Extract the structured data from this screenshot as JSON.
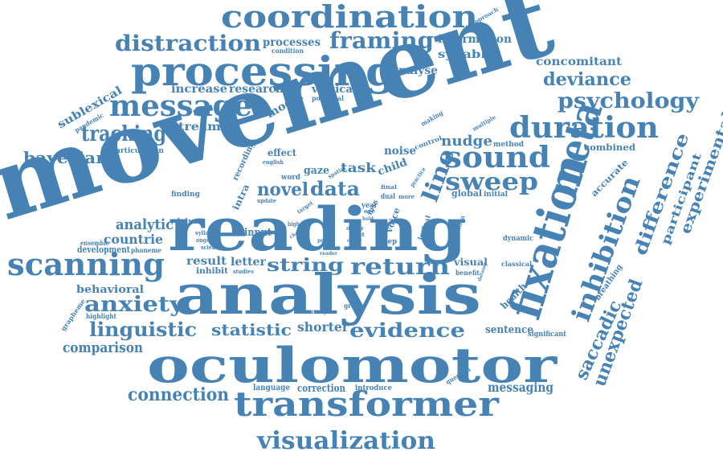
{
  "color": "#4682b4",
  "background": "#ffffff",
  "words": {
    "coordination": "coordination",
    "distraction": "distraction",
    "processes": "processes",
    "condition": "condition",
    "framing": "framing",
    "information": "information",
    "approach": "approach",
    "processing": "processing",
    "syllable": "syllable",
    "analyse": "analyse",
    "concomitant": "concomitant",
    "deviance": "deviance",
    "psychology": "psychology",
    "sublexical": "sublexical",
    "increase": "increase",
    "research": "research",
    "vertical": "vertical",
    "potential": "potential",
    "message": "message",
    "model": "model",
    "pandemic": "pandemic",
    "movement": "movement",
    "making": "making",
    "multiple": "multiple",
    "tracking": "tracking",
    "stream": "stream",
    "duration": "duration",
    "nudge": "nudge",
    "method": "method",
    "articulation": "articulation",
    "combined": "combined",
    "bayesian": "bayesian",
    "recording": "recording",
    "effect": "effect",
    "english": "english",
    "noise": "noise",
    "control": "control",
    "sound": "sound",
    "meta": "meta",
    "experimental": "experimental",
    "difference": "difference",
    "accurate": "accurate",
    "task": "task",
    "child": "child",
    "line": "line",
    "sweep": "sweep",
    "intra": "intra",
    "novel": "novel",
    "data": "data",
    "gaze": "gaze",
    "spatial": "spatial",
    "word": "word",
    "year": "year",
    "update": "update",
    "finding": "finding",
    "global": "global",
    "initial": "initial",
    "dual": "dual",
    "more": "more",
    "final": "final",
    "practice": "practice",
    "reading": "reading",
    "fixation": "fixation",
    "participant": "participant",
    "analytic": "analytic",
    "driven": "driven",
    "higher": "higher",
    "target": "target",
    "eye": "eye",
    "loss": "loss",
    "hold": "hold",
    "voice": "voice",
    "lexical": "lexical",
    "intention": "intention",
    "dynamic": "dynamic",
    "countrie": "countrie",
    "input": "input",
    "syllabic": "syllabic",
    "ongoing": "ongoing",
    "science": "science",
    "choice": "choice",
    "differ": "differ",
    "unit": "unit",
    "other": "other",
    "step": "step",
    "ensemble": "ensemble",
    "development": "development",
    "phoneme": "phoneme",
    "scanning": "scanning",
    "result": "result",
    "letter": "letter",
    "string": "string",
    "return": "return",
    "point": "point",
    "reader": "reader",
    "visual": "visual",
    "classical": "classical",
    "inhibition": "inhibition",
    "inhibit": "inhibit",
    "studies": "studies",
    "benefit": "benefit",
    "dataset": "dataset",
    "breathing": "breathing",
    "behavioral": "behavioral",
    "analysis": "analysis",
    "health": "health",
    "anxiety": "anxiety",
    "grapheme": "grapheme",
    "highlight": "highlight",
    "grade": "grade",
    "accuracy": "accuracy",
    "linguistic": "linguistic",
    "statistic": "statistic",
    "shorter": "shorter",
    "evidence": "evidence",
    "sentence": "sentence",
    "significant": "significant",
    "saccadic": "saccadic",
    "unexpected": "unexpected",
    "comparison": "comparison",
    "oculomotor": "oculomotor",
    "question": "question",
    "connection": "connection",
    "language": "language",
    "correction": "correction",
    "introduce": "introduce",
    "messaging": "messaging",
    "transformer": "transformer",
    "visualization": "visualization"
  }
}
